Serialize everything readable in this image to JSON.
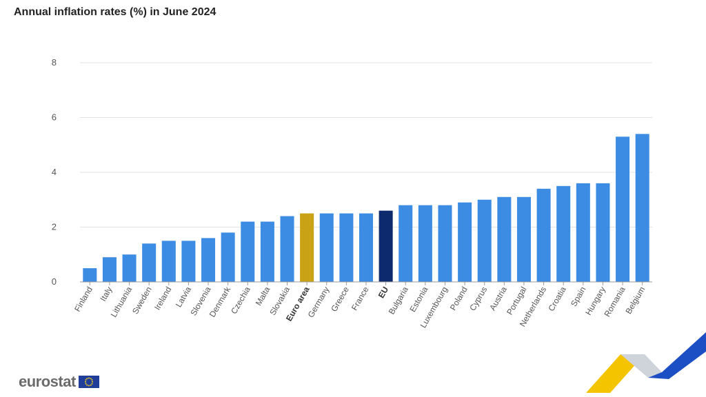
{
  "chart_data": {
    "type": "bar",
    "title": "Annual inflation rates (%) in June 2024",
    "xlabel": "",
    "ylabel": "",
    "ylim": [
      0,
      8
    ],
    "yticks": [
      0,
      2,
      4,
      6,
      8
    ],
    "grid": true,
    "categories": [
      "Finland",
      "Italy",
      "Lithuania",
      "Sweden",
      "Ireland",
      "Latvia",
      "Slovenia",
      "Denmark",
      "Czechia",
      "Malta",
      "Slovakia",
      "Euro area",
      "Germany",
      "Greece",
      "France",
      "EU",
      "Bulgaria",
      "Estonia",
      "Luxembourg",
      "Poland",
      "Cyprus",
      "Austria",
      "Portugal",
      "Netherlands",
      "Croatia",
      "Spain",
      "Hungary",
      "Romania",
      "Belgium"
    ],
    "values": [
      0.5,
      0.9,
      1.0,
      1.4,
      1.5,
      1.5,
      1.6,
      1.8,
      2.2,
      2.2,
      2.4,
      2.5,
      2.5,
      2.5,
      2.5,
      2.6,
      2.8,
      2.8,
      2.8,
      2.9,
      3.0,
      3.1,
      3.1,
      3.4,
      3.5,
      3.6,
      3.6,
      5.3,
      5.4
    ],
    "highlight": {
      "Euro area": "#c9a215",
      "EU": "#0e2a6e"
    },
    "bold_categories": [
      "Euro area",
      "EU"
    ],
    "bar_color": "#3c8ce3"
  },
  "logo": {
    "text": "eurostat",
    "flag": "eu-flag-icon"
  }
}
